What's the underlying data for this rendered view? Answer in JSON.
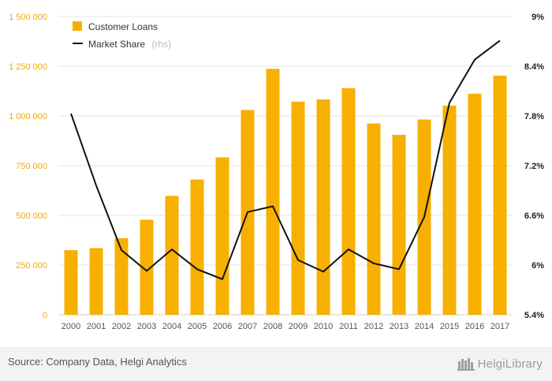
{
  "chart_data": {
    "type": "bar+line",
    "categories": [
      "2000",
      "2001",
      "2002",
      "2003",
      "2004",
      "2005",
      "2006",
      "2007",
      "2008",
      "2009",
      "2010",
      "2011",
      "2012",
      "2013",
      "2014",
      "2015",
      "2016",
      "2017"
    ],
    "series": [
      {
        "name": "Customer Loans",
        "type": "bar",
        "axis": "left",
        "color": "#f7b000",
        "values": [
          325000,
          335000,
          385000,
          478000,
          598000,
          680000,
          792000,
          1030000,
          1237000,
          1072000,
          1083000,
          1140000,
          962000,
          905000,
          982000,
          1052000,
          1112000,
          1203000
        ]
      },
      {
        "name": "Market Share",
        "note": "(rhs)",
        "type": "line",
        "axis": "right",
        "color": "#111111",
        "values": [
          7.83,
          6.96,
          6.18,
          5.93,
          6.19,
          5.95,
          5.83,
          6.64,
          6.71,
          6.06,
          5.92,
          6.19,
          6.02,
          5.95,
          6.58,
          7.96,
          8.48,
          8.71
        ]
      }
    ],
    "yleft": {
      "range": [
        0,
        1500000
      ],
      "ticks": [
        0,
        250000,
        500000,
        750000,
        1000000,
        1250000,
        1500000
      ],
      "tick_labels": [
        "0",
        "250 000",
        "500 000",
        "750 000",
        "1 000 000",
        "1 250 000",
        "1 500 000"
      ]
    },
    "yright": {
      "range": [
        5.4,
        9.0
      ],
      "ticks": [
        5.4,
        6.0,
        6.6,
        7.2,
        7.8,
        8.4,
        9.0
      ],
      "tick_labels": [
        "5.4%",
        "6%",
        "6.6%",
        "7.2%",
        "7.8%",
        "8.4%",
        "9%"
      ]
    },
    "grid": true,
    "legend_position": "top-left"
  },
  "footer": {
    "source": "Source: Company Data, Helgi Analytics",
    "logo_text": "HelgiLibrary"
  },
  "colors": {
    "left_axis": "#f3a800",
    "grid": "#e6e6e6",
    "footer_bg": "#f3f3f3"
  }
}
